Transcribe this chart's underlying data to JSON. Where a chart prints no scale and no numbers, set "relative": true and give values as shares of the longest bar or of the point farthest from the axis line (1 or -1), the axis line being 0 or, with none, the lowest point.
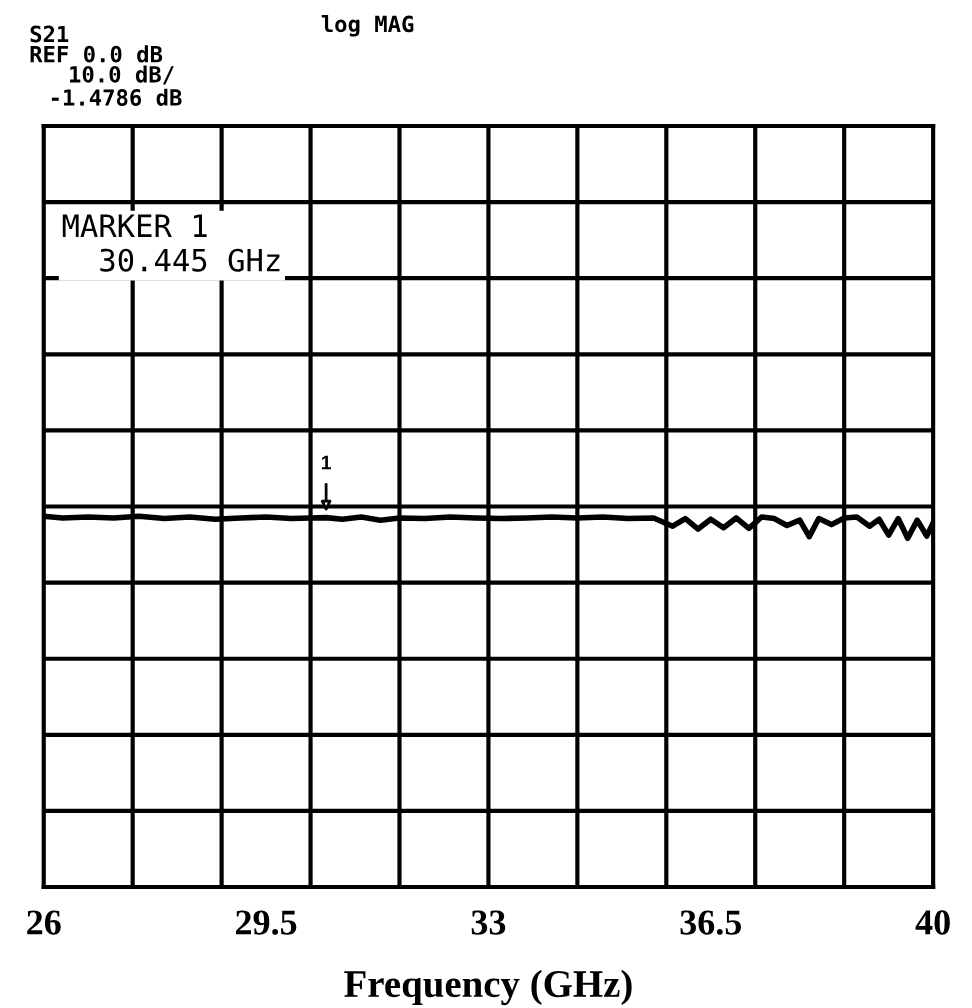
{
  "chart_data": {
    "type": "line",
    "xlabel": "Frequency (GHz)",
    "relative": true,
    "annotations": [
      "S21",
      "log MAG",
      "REF 0.0 dB",
      "10.0 dB/",
      "-1.4786 dB",
      "MARKER 1\n  30.445 GHz",
      {
        "text": "1",
        "x": 30.445,
        "y": -0.35
      }
    ],
    "x": [
      26,
      26.3,
      26.7,
      27.1,
      27.5,
      27.9,
      28.3,
      28.7,
      29.1,
      29.5,
      29.9,
      30.2,
      30.445,
      30.7,
      31.0,
      31.3,
      31.6,
      32.0,
      32.4,
      32.8,
      33.2,
      33.6,
      34.0,
      34.4,
      34.8,
      35.2,
      35.6,
      35.9,
      36.1,
      36.3,
      36.5,
      36.7,
      36.9,
      37.1,
      37.3,
      37.5,
      37.7,
      37.9,
      38.05,
      38.2,
      38.4,
      38.6,
      38.8,
      39.0,
      39.15,
      39.3,
      39.45,
      39.6,
      39.75,
      39.9,
      40
    ],
    "series": [
      {
        "color": "#000000",
        "values": [
          -0.31,
          -0.36,
          -0.33,
          -0.36,
          -0.31,
          -0.38,
          -0.33,
          -0.4,
          -0.36,
          -0.33,
          -0.38,
          -0.36,
          -0.35,
          -0.4,
          -0.33,
          -0.43,
          -0.36,
          -0.38,
          -0.33,
          -0.36,
          -0.38,
          -0.36,
          -0.33,
          -0.36,
          -0.33,
          -0.38,
          -0.36,
          -0.62,
          -0.38,
          -0.71,
          -0.4,
          -0.67,
          -0.36,
          -0.69,
          -0.33,
          -0.38,
          -0.6,
          -0.43,
          -0.95,
          -0.38,
          -0.57,
          -0.36,
          -0.33,
          -0.62,
          -0.4,
          -0.9,
          -0.38,
          -1,
          -0.43,
          -0.93,
          -0.52
        ]
      }
    ],
    "xlim": [
      26,
      40
    ],
    "xticks": [
      26,
      {
        "value": 27.4,
        "label": null
      },
      {
        "value": 28.8,
        "label": null
      },
      29.5,
      {
        "value": 30.2,
        "label": null
      },
      {
        "value": 31.6,
        "label": null
      },
      33,
      {
        "value": 33.0001,
        "label": null
      },
      {
        "value": 34.4,
        "label": null
      },
      {
        "value": 35.8,
        "label": null
      },
      36.5,
      {
        "value": 37.2,
        "label": null
      },
      {
        "value": 38.6,
        "label": null
      },
      40
    ],
    "tick_labels": "x",
    "grid": true,
    "marker": "none",
    "line_style": "solid"
  }
}
